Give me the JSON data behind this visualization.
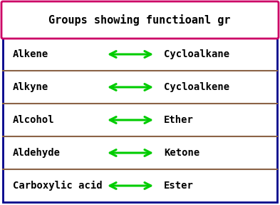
{
  "title": "Groups showing functioanl gr",
  "title_border_color": "#cc0066",
  "rows": [
    [
      "Alkene",
      "Cycloalkane"
    ],
    [
      "Alkyne",
      "Cycloalkene"
    ],
    [
      "Alcohol",
      "Ether"
    ],
    [
      "Aldehyde",
      "Ketone"
    ],
    [
      "Carboxylic acid",
      "Ester"
    ]
  ],
  "row_border_color": "#8B6347",
  "outer_border_color": "#00008B",
  "arrow_color": "#00cc00",
  "text_color": "#000000",
  "bg_color": "#ffffff",
  "font_family": "monospace",
  "title_fontsize": 11,
  "row_fontsize": 10
}
